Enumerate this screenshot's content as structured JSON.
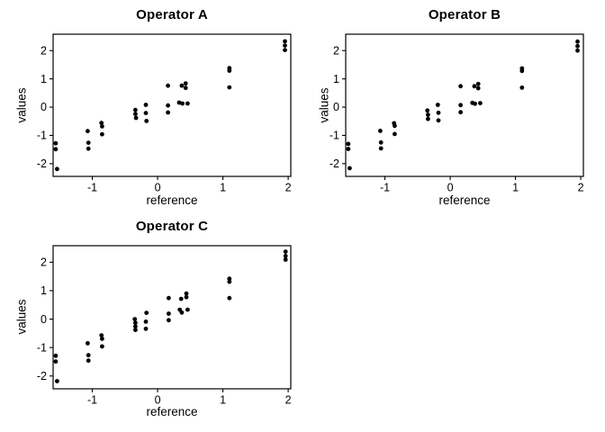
{
  "figure": {
    "background": "#ffffff",
    "foreground": "#000000",
    "marker_color": "#000000"
  },
  "chart_data": [
    {
      "type": "scatter",
      "title": "Operator A",
      "xlabel": "reference",
      "ylabel": "values",
      "xlim": [
        -1.6,
        2.04
      ],
      "ylim": [
        -2.45,
        2.58
      ],
      "x_ticks": [
        -1,
        0,
        1,
        2
      ],
      "y_ticks": [
        -2,
        -1,
        0,
        1,
        2
      ],
      "grid": false,
      "marker": {
        "shape": "filled-circle",
        "color": "#000000",
        "radius": 2.4
      },
      "points": [
        [
          -1.56,
          -1.28
        ],
        [
          -1.56,
          -1.49
        ],
        [
          -1.54,
          -2.19
        ],
        [
          -1.07,
          -0.85
        ],
        [
          -1.06,
          -1.26
        ],
        [
          -1.06,
          -1.47
        ],
        [
          -0.86,
          -0.56
        ],
        [
          -0.85,
          -0.68
        ],
        [
          -0.85,
          -0.96
        ],
        [
          -0.34,
          -0.1
        ],
        [
          -0.34,
          -0.24
        ],
        [
          -0.33,
          -0.38
        ],
        [
          -0.18,
          0.08
        ],
        [
          -0.18,
          -0.21
        ],
        [
          -0.17,
          -0.49
        ],
        [
          0.16,
          0.76
        ],
        [
          0.16,
          0.06
        ],
        [
          0.16,
          -0.19
        ],
        [
          0.33,
          0.16
        ],
        [
          0.37,
          0.76
        ],
        [
          0.38,
          0.13
        ],
        [
          0.43,
          0.84
        ],
        [
          0.43,
          0.68
        ],
        [
          0.46,
          0.13
        ],
        [
          1.1,
          1.38
        ],
        [
          1.1,
          1.29
        ],
        [
          1.1,
          0.7
        ],
        [
          1.95,
          2.33
        ],
        [
          1.95,
          2.18
        ],
        [
          1.95,
          2.02
        ]
      ]
    },
    {
      "type": "scatter",
      "title": "Operator B",
      "xlabel": "reference",
      "ylabel": "values",
      "xlim": [
        -1.6,
        2.04
      ],
      "ylim": [
        -2.45,
        2.58
      ],
      "x_ticks": [
        -1,
        0,
        1,
        2
      ],
      "y_ticks": [
        -2,
        -1,
        0,
        1,
        2
      ],
      "grid": false,
      "marker": {
        "shape": "filled-circle",
        "color": "#000000",
        "radius": 2.4
      },
      "points": [
        [
          -1.56,
          -1.3
        ],
        [
          -1.56,
          -1.48
        ],
        [
          -1.54,
          -2.16
        ],
        [
          -1.07,
          -0.84
        ],
        [
          -1.06,
          -1.25
        ],
        [
          -1.06,
          -1.46
        ],
        [
          -0.86,
          -0.57
        ],
        [
          -0.85,
          -0.66
        ],
        [
          -0.85,
          -0.95
        ],
        [
          -0.35,
          -0.12
        ],
        [
          -0.34,
          -0.27
        ],
        [
          -0.34,
          -0.42
        ],
        [
          -0.19,
          0.08
        ],
        [
          -0.18,
          -0.2
        ],
        [
          -0.18,
          -0.47
        ],
        [
          0.16,
          0.74
        ],
        [
          0.16,
          0.07
        ],
        [
          0.16,
          -0.18
        ],
        [
          0.34,
          0.15
        ],
        [
          0.37,
          0.74
        ],
        [
          0.38,
          0.12
        ],
        [
          0.43,
          0.82
        ],
        [
          0.43,
          0.67
        ],
        [
          0.46,
          0.14
        ],
        [
          1.1,
          1.37
        ],
        [
          1.1,
          1.28
        ],
        [
          1.1,
          0.69
        ],
        [
          1.95,
          2.32
        ],
        [
          1.95,
          2.16
        ],
        [
          1.95,
          2.0
        ]
      ]
    },
    {
      "type": "scatter",
      "title": "Operator C",
      "xlabel": "reference",
      "ylabel": "values",
      "xlim": [
        -1.6,
        2.04
      ],
      "ylim": [
        -2.45,
        2.58
      ],
      "x_ticks": [
        -1,
        0,
        1,
        2
      ],
      "y_ticks": [
        -2,
        -1,
        0,
        1,
        2
      ],
      "grid": false,
      "marker": {
        "shape": "filled-circle",
        "color": "#000000",
        "radius": 2.4
      },
      "points": [
        [
          -1.56,
          -1.29
        ],
        [
          -1.56,
          -1.49
        ],
        [
          -1.54,
          -2.18
        ],
        [
          -1.07,
          -0.85
        ],
        [
          -1.06,
          -1.27
        ],
        [
          -1.06,
          -1.46
        ],
        [
          -0.86,
          -0.57
        ],
        [
          -0.85,
          -0.69
        ],
        [
          -0.85,
          -0.96
        ],
        [
          -0.35,
          0.0
        ],
        [
          -0.34,
          -0.13
        ],
        [
          -0.34,
          -0.26
        ],
        [
          -0.34,
          -0.38
        ],
        [
          -0.17,
          0.22
        ],
        [
          -0.18,
          -0.09
        ],
        [
          -0.18,
          -0.34
        ],
        [
          0.17,
          0.74
        ],
        [
          0.17,
          0.19
        ],
        [
          0.17,
          -0.04
        ],
        [
          0.36,
          0.71
        ],
        [
          0.34,
          0.33
        ],
        [
          0.37,
          0.23
        ],
        [
          0.44,
          0.9
        ],
        [
          0.44,
          0.77
        ],
        [
          0.46,
          0.33
        ],
        [
          1.1,
          1.42
        ],
        [
          1.1,
          1.31
        ],
        [
          1.1,
          0.74
        ],
        [
          1.96,
          2.37
        ],
        [
          1.96,
          2.22
        ],
        [
          1.96,
          2.09
        ]
      ]
    }
  ]
}
